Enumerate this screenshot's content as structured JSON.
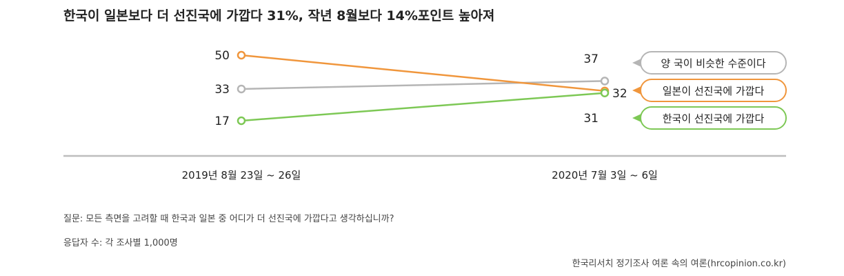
{
  "chart_data": {
    "type": "line",
    "title": "한국이 일본보다 더 선진국에 가깝다 31%, 작년 8월보다 14%포인트 높아져",
    "x": [
      "2019년 8월 23일 ~ 26일",
      "2020년 7월 3일 ~ 6일"
    ],
    "series": [
      {
        "name": "양 국이 비슷한 수준이다",
        "values": [
          33,
          37
        ],
        "color": "#b5b5b5"
      },
      {
        "name": "일본이 선진국에 가깝다",
        "values": [
          50,
          32
        ],
        "color": "#f0963c"
      },
      {
        "name": "한국이 선진국에 가깝다",
        "values": [
          17,
          31
        ],
        "color": "#7dc855"
      }
    ],
    "legend_position": "right",
    "grid": false
  },
  "notes": {
    "question": "질문:  모든 측면을 고려할 때 한국과 일본 중 어디가 더 선진국에 가깝다고 생각하십니까?",
    "sample": "응답자 수: 각 조사별 1,000명",
    "source": "한국리서치 정기조사 여론 속의 여론(hrcopinion.co.kr)"
  }
}
